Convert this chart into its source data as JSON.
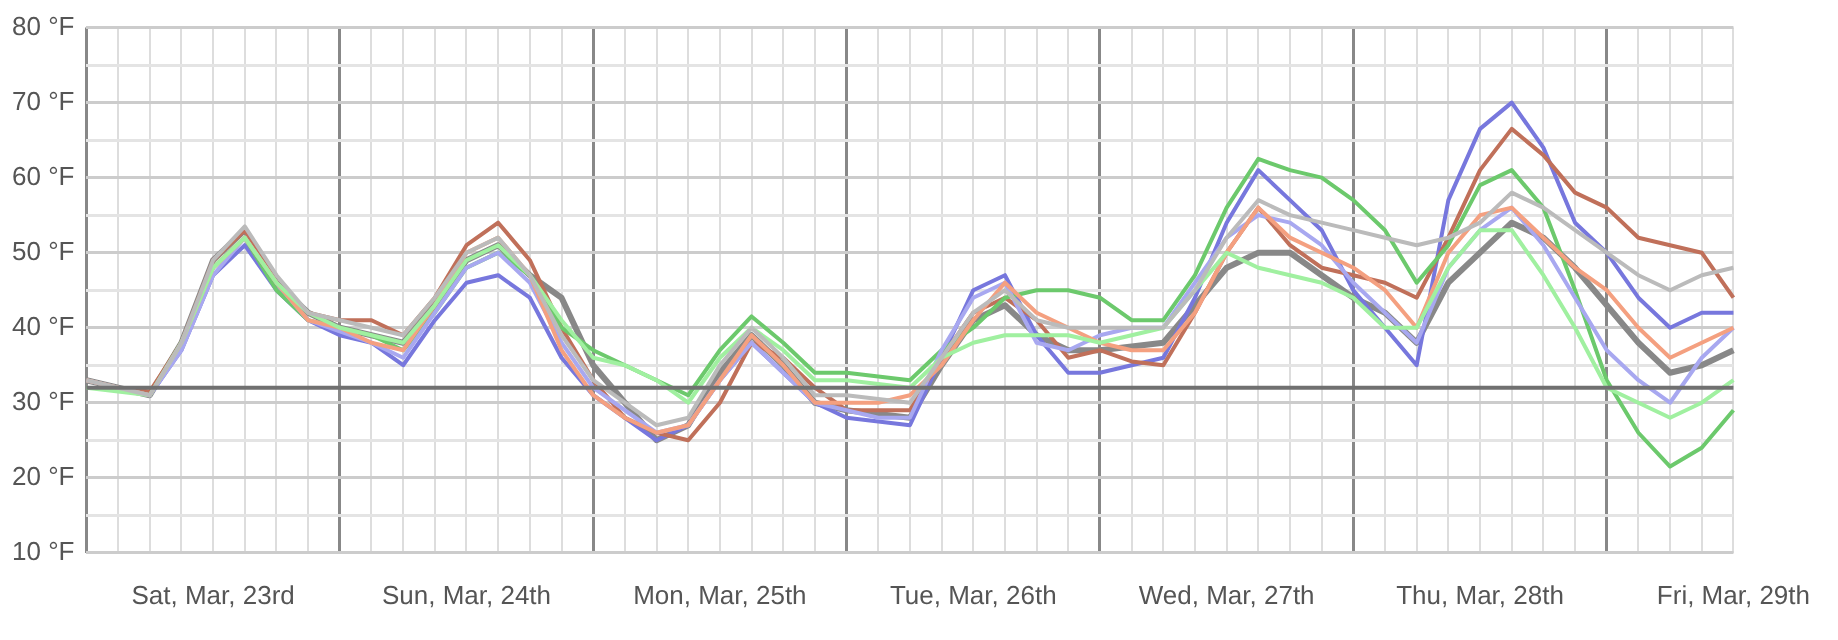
{
  "chart_data": {
    "type": "line",
    "categories": [
      null,
      null,
      null,
      null,
      "Sat, Mar, 23rd",
      null,
      null,
      null,
      null,
      null,
      null,
      null,
      "Sun, Mar, 24th",
      null,
      null,
      null,
      null,
      null,
      null,
      null,
      "Mon, Mar, 25th",
      null,
      null,
      null,
      null,
      null,
      null,
      null,
      "Tue, Mar, 26th",
      null,
      null,
      null,
      null,
      null,
      null,
      null,
      "Wed, Mar, 27th",
      null,
      null,
      null,
      null,
      null,
      null,
      null,
      "Thu, Mar, 28th",
      null,
      null,
      null,
      null,
      null,
      null,
      null,
      "Fri, Mar, 29th"
    ],
    "series": [
      {
        "color": "#bbbbbb",
        "values": [
          33,
          32,
          31,
          38,
          49,
          53.5,
          47,
          42,
          41,
          40,
          39,
          44,
          50,
          52,
          47,
          39,
          33,
          30,
          27,
          28,
          35,
          40,
          36,
          31,
          31,
          30.5,
          30,
          36,
          42,
          45,
          41,
          40,
          40,
          40,
          40,
          45,
          52,
          57,
          55,
          54,
          53,
          52,
          51,
          52,
          54,
          58,
          56,
          53,
          50,
          47,
          45,
          47,
          48
        ]
      },
      {
        "color": "#a0f0a0",
        "values": [
          32,
          31.5,
          31,
          38,
          48,
          52,
          46,
          42,
          40,
          39,
          38,
          43,
          49,
          51,
          47,
          41,
          36,
          35,
          33,
          30,
          36,
          40,
          37,
          33,
          33,
          32.5,
          32,
          36,
          38,
          39,
          39,
          39,
          38,
          39,
          40,
          45,
          50,
          48,
          47,
          46,
          44,
          40,
          40,
          48,
          53,
          53,
          47,
          40,
          32,
          30,
          28,
          30,
          33
        ]
      },
      {
        "color": "#f4a080",
        "values": [
          33,
          32,
          31,
          38,
          48,
          52,
          46,
          41,
          40,
          38,
          37,
          43,
          50,
          52,
          47,
          37,
          31,
          28,
          26,
          27,
          33,
          39,
          35,
          30,
          30,
          30,
          31,
          35,
          41,
          46,
          42,
          40,
          38,
          37,
          37,
          42,
          50,
          56,
          52,
          50,
          48,
          45,
          40,
          50,
          55,
          56,
          52,
          48,
          45,
          40,
          36,
          38,
          40
        ]
      },
      {
        "color": "#a8a8f0",
        "values": [
          33,
          32,
          31,
          37,
          47,
          52,
          46,
          41,
          39.5,
          38,
          36,
          42,
          48,
          50,
          46,
          38,
          32,
          29,
          26,
          27,
          33,
          38,
          34,
          30,
          29,
          28,
          28,
          37,
          44,
          46,
          38,
          37,
          39,
          40,
          40,
          46,
          52,
          55,
          54,
          51,
          46,
          42,
          38,
          48,
          53,
          56,
          51,
          44,
          37,
          33,
          30,
          36,
          40
        ]
      },
      {
        "color": "#6cc96c",
        "values": [
          33,
          32,
          31,
          38,
          48,
          52,
          45,
          41,
          40,
          39,
          37,
          42,
          48,
          50,
          47,
          40,
          37,
          35,
          33,
          31,
          37,
          41.5,
          38,
          34,
          34,
          33.5,
          33,
          37,
          40,
          44,
          45,
          45,
          44,
          41,
          41,
          47,
          56,
          62.5,
          61,
          60,
          57,
          53,
          46,
          51,
          59,
          61,
          56,
          45,
          33,
          26,
          21.5,
          24,
          29
        ]
      },
      {
        "color": "#c0705a",
        "values": [
          33,
          32,
          31.5,
          38,
          49,
          53,
          46,
          42,
          41,
          41,
          39,
          44,
          51,
          54,
          49,
          40,
          33,
          28,
          26,
          25,
          30,
          38,
          36,
          32,
          29,
          29,
          29,
          36,
          42,
          44,
          41,
          36,
          37,
          35.5,
          35,
          42,
          50,
          56,
          51,
          48,
          47,
          46,
          44,
          52,
          61,
          66.5,
          63,
          58,
          56,
          52,
          51,
          50,
          44
        ]
      },
      {
        "color": "#7777dd",
        "values": [
          33,
          32,
          31,
          37,
          47,
          51,
          45,
          41,
          39,
          38,
          35,
          41,
          46,
          47,
          44,
          36,
          31,
          28,
          25,
          27,
          33,
          38,
          34,
          30,
          28,
          27.5,
          27,
          36,
          45,
          47,
          39,
          34,
          34,
          35,
          36,
          44,
          54,
          61,
          57,
          53,
          45,
          40,
          35,
          57,
          66.5,
          70,
          64,
          54,
          50,
          44,
          40,
          42,
          42
        ]
      },
      {
        "color": "#888888",
        "values": [
          33,
          32,
          31,
          38,
          49,
          53,
          46,
          42,
          40,
          39,
          38,
          43,
          49,
          51,
          47,
          44,
          35,
          30,
          25,
          27,
          34,
          39,
          35,
          30,
          29,
          28.5,
          28,
          35,
          41,
          43,
          39,
          37,
          37,
          37.5,
          38,
          43,
          48,
          50,
          50,
          47,
          44,
          42,
          38,
          46,
          50,
          54,
          52,
          48,
          43,
          38,
          34,
          35,
          37
        ]
      }
    ],
    "ylim": [
      10,
      80
    ],
    "yticks": [
      {
        "value": 10,
        "label": "10 °F"
      },
      {
        "value": 15,
        "label": null
      },
      {
        "value": 20,
        "label": "20 °F"
      },
      {
        "value": 25,
        "label": null
      },
      {
        "value": 30,
        "label": "30 °F"
      },
      {
        "value": 35,
        "label": null
      },
      {
        "value": 40,
        "label": "40 °F"
      },
      {
        "value": 45,
        "label": null
      },
      {
        "value": 50,
        "label": "50 °F"
      },
      {
        "value": 55,
        "label": null
      },
      {
        "value": 60,
        "label": "60 °F"
      },
      {
        "value": 65,
        "label": null
      },
      {
        "value": 70,
        "label": "70 °F"
      },
      {
        "value": 75,
        "label": null
      },
      {
        "value": 80,
        "label": "80 °F"
      }
    ],
    "grid": true,
    "legend": false,
    "ref_lines": [
      {
        "axis": "y",
        "value": 32,
        "color": "#707070"
      }
    ]
  }
}
